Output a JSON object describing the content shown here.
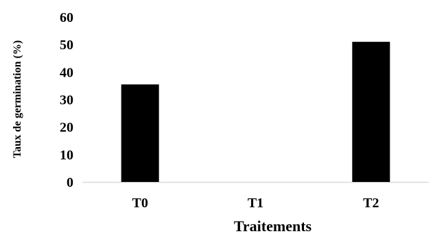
{
  "chart_data": {
    "type": "bar",
    "categories": [
      "T0",
      "T1",
      "T2"
    ],
    "values": [
      35.5,
      0,
      51
    ],
    "title": "",
    "xlabel": "Traitements",
    "ylabel": "Taux de germination (%)",
    "ylim": [
      0,
      60
    ],
    "yticks": [
      "0",
      "10",
      "20",
      "30",
      "40",
      "50",
      "60"
    ],
    "grid": false,
    "legend": "none",
    "bar_color": "#000000",
    "axis_color": "#d9d9d9"
  }
}
